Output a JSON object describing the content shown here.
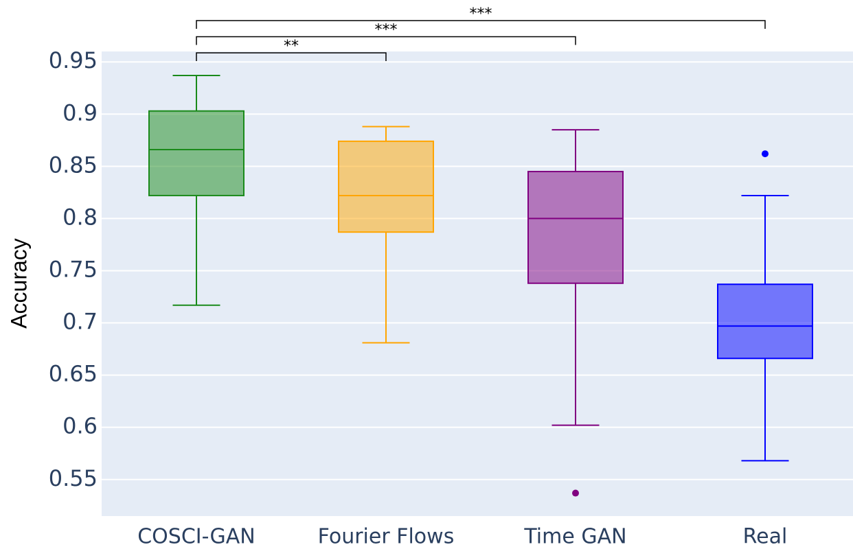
{
  "chart_data": {
    "type": "box",
    "y_label": "Accuracy",
    "categories": [
      "COSCI-GAN",
      "Fourier Flows",
      "Time GAN",
      "Real"
    ],
    "boxes": [
      {
        "color": "#1a8a1a",
        "min": 0.717,
        "q1": 0.822,
        "median": 0.866,
        "q3": 0.903,
        "max": 0.937,
        "outliers": []
      },
      {
        "color": "#ffa500",
        "min": 0.681,
        "q1": 0.787,
        "median": 0.822,
        "q3": 0.874,
        "max": 0.888,
        "outliers": []
      },
      {
        "color": "#800080",
        "min": 0.602,
        "q1": 0.738,
        "median": 0.8,
        "q3": 0.845,
        "max": 0.885,
        "outliers": [
          0.537
        ]
      },
      {
        "color": "#0000ff",
        "min": 0.568,
        "q1": 0.666,
        "median": 0.697,
        "q3": 0.737,
        "max": 0.822,
        "outliers": [
          0.862
        ]
      }
    ],
    "significance": [
      {
        "label": "**",
        "pair": [
          "COSCI-GAN",
          "Fourier Flows"
        ]
      },
      {
        "label": "***",
        "pair": [
          "COSCI-GAN",
          "Time GAN"
        ]
      },
      {
        "label": "***",
        "pair": [
          "COSCI-GAN",
          "Real"
        ]
      }
    ],
    "ylim": [
      0.515,
      0.96
    ],
    "yticks": [
      0.55,
      0.6,
      0.65,
      0.7,
      0.75,
      0.8,
      0.85,
      0.9,
      0.95
    ],
    "grid": true
  }
}
